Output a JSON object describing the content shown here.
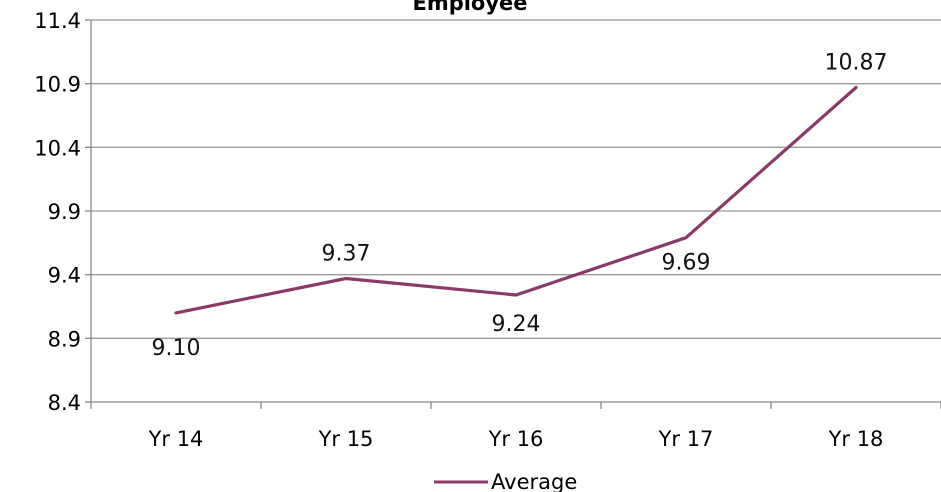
{
  "chart_data": {
    "type": "line",
    "title": "Employee",
    "xlabel": "",
    "ylabel": "",
    "categories": [
      "Yr 14",
      "Yr 15",
      "Yr 16",
      "Yr 17",
      "Yr 18"
    ],
    "yticks": [
      "8.4",
      "8.9",
      "9.4",
      "9.9",
      "10.4",
      "10.9",
      "11.4"
    ],
    "ylim": [
      8.4,
      11.4
    ],
    "grid": "horizontal",
    "legend_position": "bottom",
    "series": [
      {
        "name": "Average",
        "values": [
          9.1,
          9.37,
          9.24,
          9.69,
          10.87
        ],
        "labels": [
          "9.10",
          "9.37",
          "9.24",
          "9.69",
          "10.87"
        ],
        "color": "#8a3a68"
      }
    ]
  }
}
